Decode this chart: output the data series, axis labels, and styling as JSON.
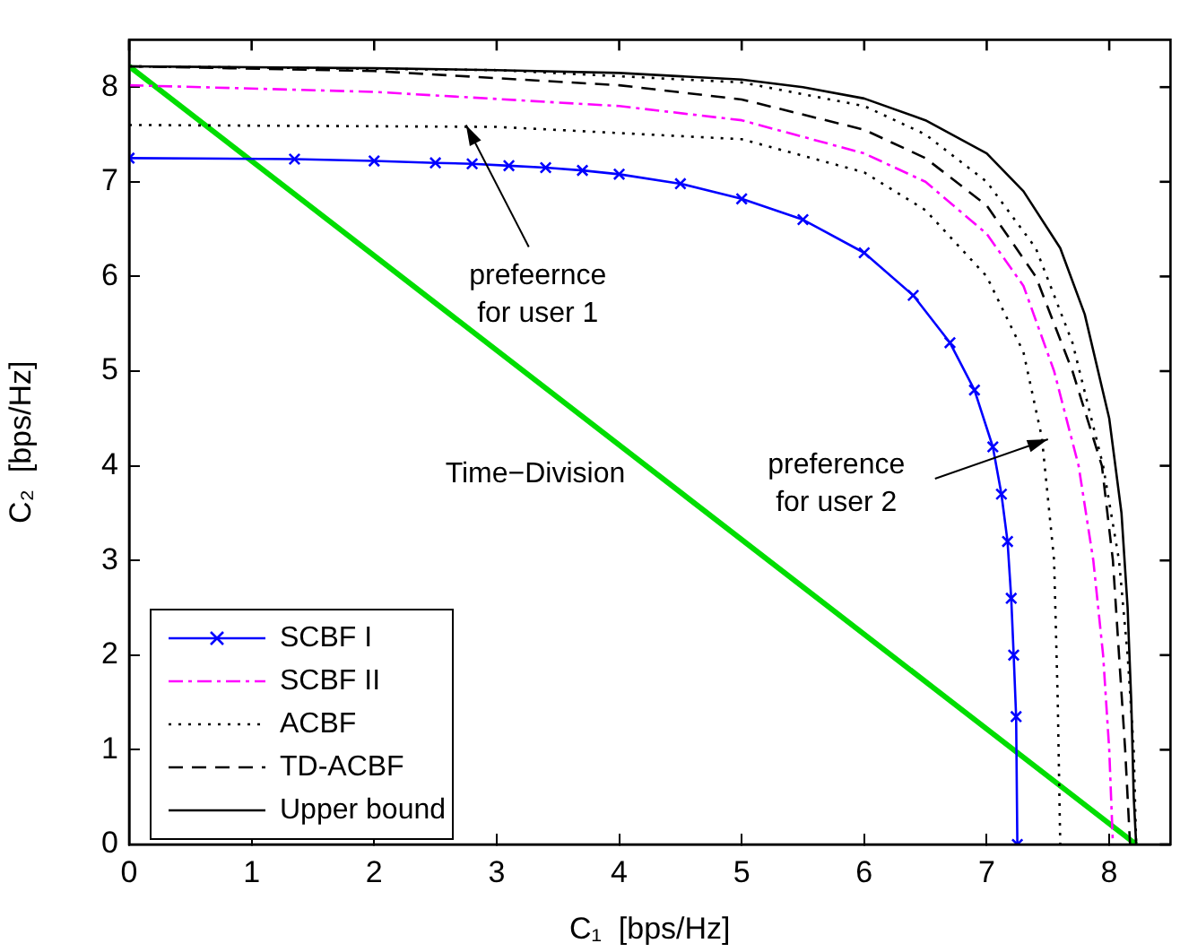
{
  "chart_data": {
    "type": "line",
    "xlabel": "C₁  [bps/Hz]",
    "ylabel": "C₂  [bps/Hz]",
    "xlim": [
      0,
      8.5
    ],
    "ylim": [
      0,
      8.5
    ],
    "xticks": [
      0,
      1,
      2,
      3,
      4,
      5,
      6,
      7,
      8
    ],
    "yticks": [
      0,
      1,
      2,
      3,
      4,
      5,
      6,
      7,
      8
    ],
    "grid": false,
    "legend": "bottom left",
    "series": [
      {
        "name": "SCBF I",
        "color": "#0000ff",
        "marker": "cross",
        "line_style": "solid",
        "x": [
          0,
          1.35,
          2,
          2.5,
          2.8,
          3.1,
          3.4,
          3.7,
          4,
          4.5,
          5,
          5.5,
          6,
          6.4,
          6.7,
          6.9,
          7.05,
          7.12,
          7.17,
          7.2,
          7.22,
          7.24,
          7.25
        ],
        "values": [
          7.25,
          7.24,
          7.22,
          7.2,
          7.19,
          7.17,
          7.15,
          7.12,
          7.08,
          6.98,
          6.82,
          6.6,
          6.25,
          5.8,
          5.3,
          4.8,
          4.2,
          3.7,
          3.2,
          2.6,
          2,
          1.35,
          0
        ]
      },
      {
        "name": "SCBF II",
        "color": "#ff00ff",
        "marker": "none",
        "line_style": "dashdot",
        "x": [
          0,
          2,
          4,
          5,
          6,
          6.5,
          7,
          7.3,
          7.55,
          7.75,
          7.87,
          7.95,
          8,
          8.03
        ],
        "values": [
          8.02,
          7.95,
          7.8,
          7.65,
          7.3,
          7,
          6.45,
          5.9,
          5,
          4,
          3,
          2,
          1,
          0
        ]
      },
      {
        "name": "ACBF",
        "color": "#000000",
        "marker": "none",
        "line_style": "dotted",
        "x": [
          0,
          3,
          5,
          6,
          6.5,
          7,
          7.3,
          7.45,
          7.55,
          7.58,
          7.6,
          null,
          0,
          3,
          5,
          6,
          6.5,
          7,
          7.4,
          7.7,
          7.95,
          8.08,
          8.15,
          8.2,
          8.22
        ],
        "values": [
          7.6,
          7.58,
          7.45,
          7.1,
          6.7,
          6,
          5.2,
          4.3,
          3,
          1.5,
          0,
          null,
          8.22,
          8.18,
          8.05,
          7.8,
          7.5,
          7,
          6.3,
          5.3,
          4,
          3,
          2,
          1,
          0
        ]
      },
      {
        "name": "TD-ACBF",
        "color": "#000000",
        "marker": "none",
        "line_style": "dashed",
        "x": [
          0,
          2,
          4,
          5,
          6,
          6.5,
          7,
          7.4,
          7.7,
          7.94,
          8.03,
          8.08,
          8.13,
          8.17
        ],
        "values": [
          8.22,
          8.17,
          8.02,
          7.87,
          7.55,
          7.25,
          6.75,
          6,
          5,
          4,
          3,
          2,
          1,
          0
        ]
      },
      {
        "name": "Upper bound",
        "color": "#000000",
        "marker": "none",
        "line_style": "solid",
        "x": [
          0,
          1,
          2,
          3,
          4,
          5,
          5.5,
          6,
          6.5,
          7,
          7.3,
          7.6,
          7.8,
          8,
          8.1,
          8.15,
          8.18,
          8.2,
          8.22
        ],
        "values": [
          8.22,
          8.21,
          8.2,
          8.18,
          8.15,
          8.08,
          8,
          7.88,
          7.65,
          7.3,
          6.9,
          6.3,
          5.6,
          4.5,
          3.5,
          2.5,
          1.5,
          0.5,
          0
        ]
      },
      {
        "color": "#00dd00",
        "marker": "none",
        "line_style": "solid",
        "x": [
          0,
          8.22
        ],
        "values": [
          8.22,
          0
        ]
      }
    ],
    "annotations": [
      {
        "text": "prefeernce\nfor user 1",
        "x": 2.75,
        "y": 7.6
      },
      {
        "text": "preference\nfor user 2",
        "x": 7.5,
        "y": 4.28
      },
      "Time−Division"
    ]
  }
}
